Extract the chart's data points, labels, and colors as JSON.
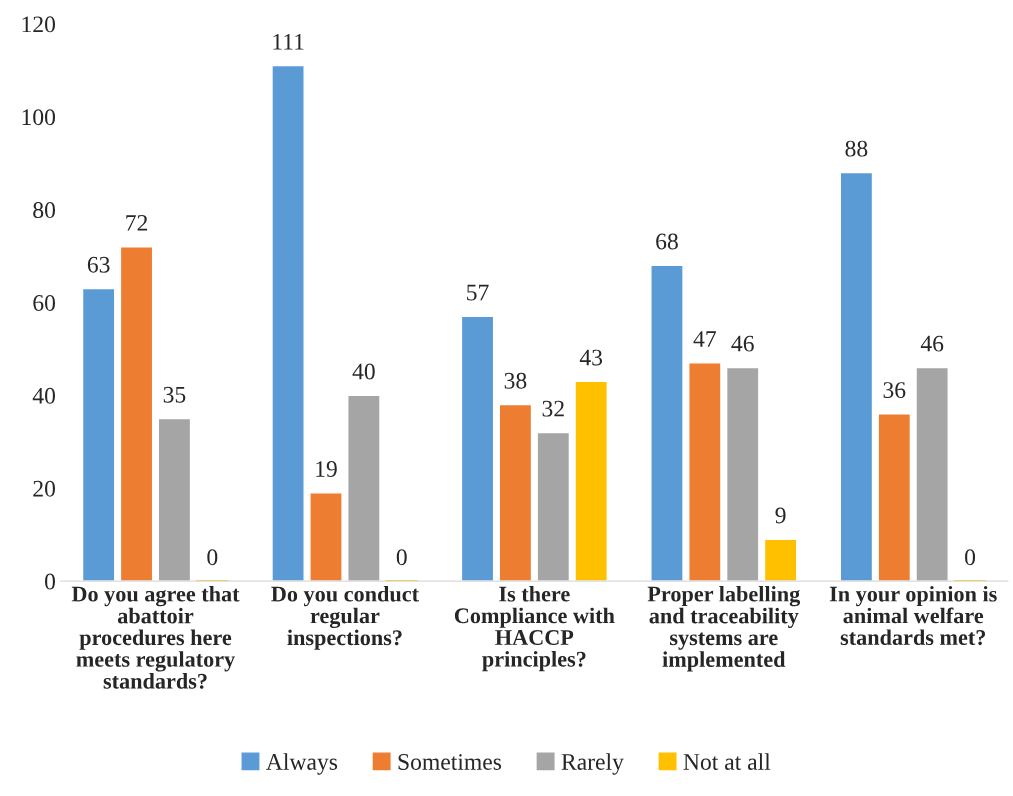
{
  "chart_data": {
    "type": "bar",
    "categories": [
      "Do you agree that\nabattoir\nprocedures here\nmeets regulatory\nstandards?",
      "Do you conduct\nregular\ninspections?",
      "Is there\nCompliance with\nHACCP\nprinciples?",
      "Proper labelling\nand traceability\nsystems are\nimplemented",
      "In your opinion is\nanimal welfare\nstandards met?"
    ],
    "series": [
      {
        "name": "Always",
        "color": "#5b9bd5",
        "values": [
          63,
          111,
          57,
          68,
          88
        ]
      },
      {
        "name": "Sometimes",
        "color": "#ed7d31",
        "values": [
          72,
          19,
          38,
          47,
          36
        ]
      },
      {
        "name": "Rarely",
        "color": "#a5a5a5",
        "values": [
          35,
          40,
          32,
          46,
          46
        ]
      },
      {
        "name": "Not at all",
        "color": "#ffc000",
        "values": [
          0,
          0,
          43,
          9,
          0
        ]
      }
    ],
    "ylim": [
      0,
      120
    ],
    "yticks": [
      0,
      20,
      40,
      60,
      80,
      100,
      120
    ],
    "data_labels": true,
    "grid": false,
    "legend": "bottom"
  }
}
